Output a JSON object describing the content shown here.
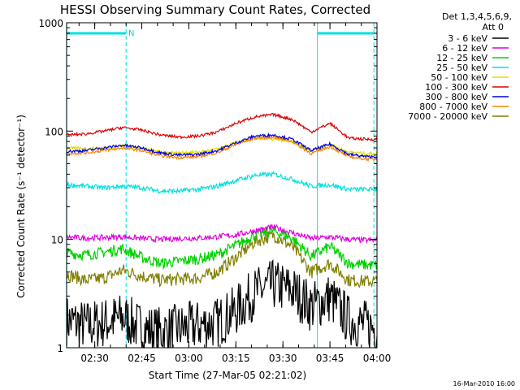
{
  "chart_data": {
    "type": "line",
    "title": "HESSI Observing Summary Count Rates, Corrected",
    "xlabel": "Start Time (27-Mar-05 02:21:02)",
    "ylabel": "Corrected Count Rate (s⁻¹ detector⁻¹)",
    "yscale": "log",
    "ylim": [
      1,
      1000
    ],
    "xlim": [
      "02:21:02",
      "04:00"
    ],
    "x_ticks": [
      "02:30",
      "02:45",
      "03:00",
      "03:15",
      "03:30",
      "03:45",
      "04:00"
    ],
    "y_ticks": [
      "1",
      "10",
      "100",
      "1000"
    ],
    "legend": {
      "header_line1": "Det 1,3,4,5,6,9,",
      "header_line2": "Att 0",
      "placement": "outside-right"
    },
    "markers": {
      "flag_label": "N",
      "night_intervals": [
        [
          "02:21",
          "02:40"
        ],
        [
          "03:41",
          "03:59"
        ]
      ]
    },
    "footer_date": "16-Mar-2010 16:00",
    "x": [
      "02:21",
      "02:27",
      "02:33",
      "02:39",
      "02:45",
      "02:51",
      "02:57",
      "03:03",
      "03:09",
      "03:15",
      "03:21",
      "03:27",
      "03:33",
      "03:39",
      "03:45",
      "03:51",
      "03:57",
      "04:00"
    ],
    "series": [
      {
        "name": "3 - 6 keV",
        "color": "#000000",
        "values": [
          1.8,
          1.6,
          1.7,
          1.9,
          1.5,
          1.4,
          1.5,
          1.6,
          1.7,
          2.2,
          3.2,
          3.8,
          3.4,
          2.4,
          2.9,
          1.8,
          1.6,
          1.5
        ]
      },
      {
        "name": "6 - 12 keV",
        "color": "#e000e0",
        "values": [
          10.5,
          10.3,
          10.4,
          10.6,
          10.2,
          10.0,
          10.2,
          10.3,
          10.6,
          11,
          12,
          13,
          11.5,
          10.2,
          10.5,
          10,
          9.8,
          9.8
        ]
      },
      {
        "name": "12 - 25 keV",
        "color": "#00d000",
        "values": [
          7.5,
          7.2,
          7.6,
          8.2,
          6.8,
          6.0,
          6.3,
          6.6,
          7.2,
          8.8,
          11,
          12,
          10.2,
          7.0,
          8.6,
          6.0,
          5.8,
          5.8
        ]
      },
      {
        "name": "25 - 50 keV",
        "color": "#00e0e0",
        "values": [
          32,
          31,
          30,
          31,
          30,
          28,
          28,
          29,
          31,
          35,
          39,
          40,
          36,
          31,
          32,
          29,
          29,
          29
        ]
      },
      {
        "name": "50 - 100 keV",
        "color": "#e0e000",
        "values": [
          70,
          69,
          70,
          73,
          70,
          64,
          63,
          64,
          68,
          78,
          86,
          84,
          80,
          66,
          75,
          64,
          62,
          62
        ]
      },
      {
        "name": "100 - 300 keV",
        "color": "#e00000",
        "values": [
          92,
          94,
          100,
          108,
          102,
          92,
          88,
          90,
          98,
          118,
          135,
          142,
          128,
          98,
          118,
          86,
          84,
          84
        ]
      },
      {
        "name": "300 - 800 keV",
        "color": "#0000e0",
        "values": [
          65,
          66,
          70,
          74,
          70,
          63,
          60,
          61,
          66,
          78,
          90,
          92,
          84,
          66,
          76,
          61,
          58,
          58
        ]
      },
      {
        "name": "800 - 7000 keV",
        "color": "#ff8000",
        "values": [
          62,
          63,
          66,
          70,
          66,
          59,
          57,
          58,
          63,
          75,
          86,
          88,
          80,
          62,
          72,
          58,
          55,
          55
        ]
      },
      {
        "name": "7000 - 20000 keV",
        "color": "#808000",
        "values": [
          4.8,
          4.2,
          4.4,
          5.2,
          4.6,
          4.2,
          4.3,
          4.4,
          5.0,
          6.8,
          9.5,
          11,
          8.6,
          5.0,
          6.0,
          4.2,
          4.1,
          4.1
        ]
      }
    ]
  }
}
